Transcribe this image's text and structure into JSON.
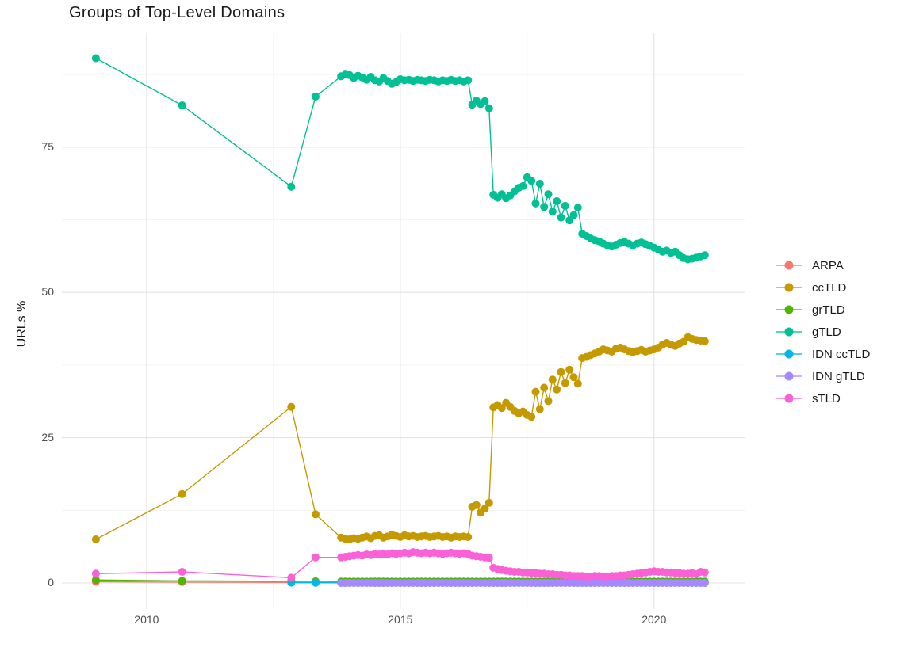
{
  "chart_data": {
    "type": "line",
    "title": "Groups of Top-Level Domains",
    "xlabel": "",
    "ylabel": "URLs %",
    "x_ticks": {
      "values": [
        2010,
        2015,
        2020
      ],
      "labels": [
        "2010",
        "2015",
        "2020"
      ]
    },
    "x_minor": [
      2012.5,
      2017.5
    ],
    "y_ticks": {
      "values": [
        0,
        25,
        50,
        75
      ],
      "labels": [
        "0",
        "25",
        "50",
        "75"
      ]
    },
    "y_minor": [
      12.5,
      37.5,
      62.5,
      87.5
    ],
    "xlim": [
      2008.33,
      2021.8
    ],
    "ylim": [
      -4.5,
      94.6
    ],
    "grid": true,
    "legend_position": "right",
    "monthly_start": 2013.8333,
    "series": [
      {
        "name": "ARPA",
        "color": "#F8766D",
        "points": [
          [
            2009.0,
            0.2
          ],
          [
            2010.7,
            0.15
          ],
          [
            2012.85,
            0.1
          ],
          [
            2013.33,
            0.08
          ]
        ],
        "monthly": {
          "repeat": 87,
          "value": 0.05
        }
      },
      {
        "name": "ccTLD",
        "color": "#C49A00",
        "points": [
          [
            2009.0,
            7.5
          ],
          [
            2010.7,
            15.3
          ],
          [
            2012.85,
            30.3
          ],
          [
            2013.33,
            11.8
          ]
        ],
        "monthly": {
          "values": [
            7.8,
            7.6,
            7.5,
            7.7,
            7.6,
            7.8,
            8.0,
            7.7,
            8.1,
            8.2,
            7.8,
            8.0,
            8.3,
            8.1,
            7.9,
            8.2,
            8.0,
            8.1,
            7.9,
            8.0,
            8.1,
            7.9,
            8.0,
            8.1,
            7.9,
            8.0,
            7.8,
            8.0,
            7.9,
            8.0,
            7.9,
            13.1,
            13.4,
            12.1,
            12.8,
            13.8,
            30.2,
            30.6,
            30.1,
            31.0,
            30.3,
            29.6,
            29.2,
            29.5,
            28.9,
            28.6,
            32.9,
            29.9,
            33.6,
            31.3,
            35.0,
            33.3,
            36.3,
            34.4,
            36.7,
            35.4,
            34.3,
            38.7,
            38.9,
            39.2,
            39.5,
            39.8,
            40.2,
            40.0,
            39.8,
            40.3,
            40.5,
            40.2,
            39.9,
            39.7,
            39.9,
            40.1,
            39.8,
            40.0,
            40.2,
            40.5,
            41.0,
            41.3,
            41.0,
            40.8,
            41.2,
            41.5,
            42.3,
            42.0,
            41.8,
            41.7,
            41.6
          ]
        }
      },
      {
        "name": "grTLD",
        "color": "#53B400",
        "points": [
          [
            2009.0,
            0.5
          ],
          [
            2010.7,
            0.35
          ],
          [
            2012.85,
            0.3
          ],
          [
            2013.33,
            0.28
          ]
        ],
        "monthly": {
          "repeat": 87,
          "value": 0.25
        }
      },
      {
        "name": "gTLD",
        "color": "#00C094",
        "points": [
          [
            2009.0,
            90.3
          ],
          [
            2010.7,
            82.2
          ],
          [
            2012.85,
            68.2
          ],
          [
            2013.33,
            83.7
          ]
        ],
        "monthly": {
          "values": [
            87.2,
            87.5,
            87.4,
            86.9,
            87.3,
            87.0,
            86.6,
            87.1,
            86.5,
            86.3,
            86.9,
            86.4,
            85.9,
            86.2,
            86.7,
            86.5,
            86.6,
            86.4,
            86.6,
            86.5,
            86.4,
            86.6,
            86.5,
            86.3,
            86.5,
            86.4,
            86.6,
            86.4,
            86.5,
            86.3,
            86.5,
            82.3,
            83.0,
            82.4,
            82.9,
            81.7,
            66.8,
            66.3,
            66.9,
            66.2,
            66.7,
            67.4,
            68.0,
            68.3,
            69.8,
            69.2,
            65.3,
            68.7,
            64.7,
            66.9,
            63.9,
            65.7,
            62.9,
            64.9,
            62.4,
            63.3,
            64.6,
            60.1,
            59.7,
            59.3,
            59.0,
            58.8,
            58.4,
            58.1,
            57.9,
            58.2,
            58.5,
            58.7,
            58.4,
            58.1,
            58.4,
            58.6,
            58.3,
            58.0,
            57.7,
            57.4,
            57.0,
            57.2,
            56.8,
            57.0,
            56.4,
            55.9,
            55.7,
            55.8,
            56.0,
            56.2,
            56.4
          ]
        }
      },
      {
        "name": "IDN ccTLD",
        "color": "#00B6EB",
        "points": [
          [
            2012.85,
            0.05
          ],
          [
            2013.33,
            0.04
          ]
        ],
        "monthly": {
          "repeat": 87,
          "value": 0.03
        }
      },
      {
        "name": "IDN gTLD",
        "color": "#A58AFF",
        "points": [],
        "monthly": {
          "repeat": 87,
          "value": 0.0
        }
      },
      {
        "name": "sTLD",
        "color": "#FB61D7",
        "points": [
          [
            2009.0,
            1.6
          ],
          [
            2010.7,
            1.9
          ],
          [
            2012.85,
            0.9
          ],
          [
            2013.33,
            4.4
          ]
        ],
        "monthly": {
          "values": [
            4.4,
            4.5,
            4.6,
            4.7,
            4.8,
            4.7,
            4.9,
            4.8,
            5.0,
            4.9,
            5.0,
            4.9,
            5.1,
            5.0,
            5.1,
            5.2,
            5.1,
            5.3,
            5.2,
            5.1,
            5.2,
            5.1,
            5.2,
            5.1,
            5.0,
            5.1,
            5.2,
            5.1,
            5.0,
            5.1,
            5.0,
            4.7,
            4.6,
            4.5,
            4.4,
            4.3,
            2.6,
            2.4,
            2.2,
            2.1,
            2.0,
            1.9,
            1.9,
            1.8,
            1.8,
            1.7,
            1.7,
            1.6,
            1.6,
            1.5,
            1.5,
            1.4,
            1.4,
            1.3,
            1.3,
            1.2,
            1.2,
            1.2,
            1.1,
            1.1,
            1.2,
            1.2,
            1.1,
            1.1,
            1.2,
            1.2,
            1.3,
            1.3,
            1.4,
            1.5,
            1.6,
            1.7,
            1.8,
            1.9,
            2.0,
            1.9,
            1.9,
            1.8,
            1.8,
            1.7,
            1.7,
            1.6,
            1.6,
            1.7,
            1.5,
            1.9,
            1.8
          ]
        }
      }
    ],
    "grid_color_major": "#e3e3e3",
    "grid_color_minor": "#f0f0f0"
  }
}
